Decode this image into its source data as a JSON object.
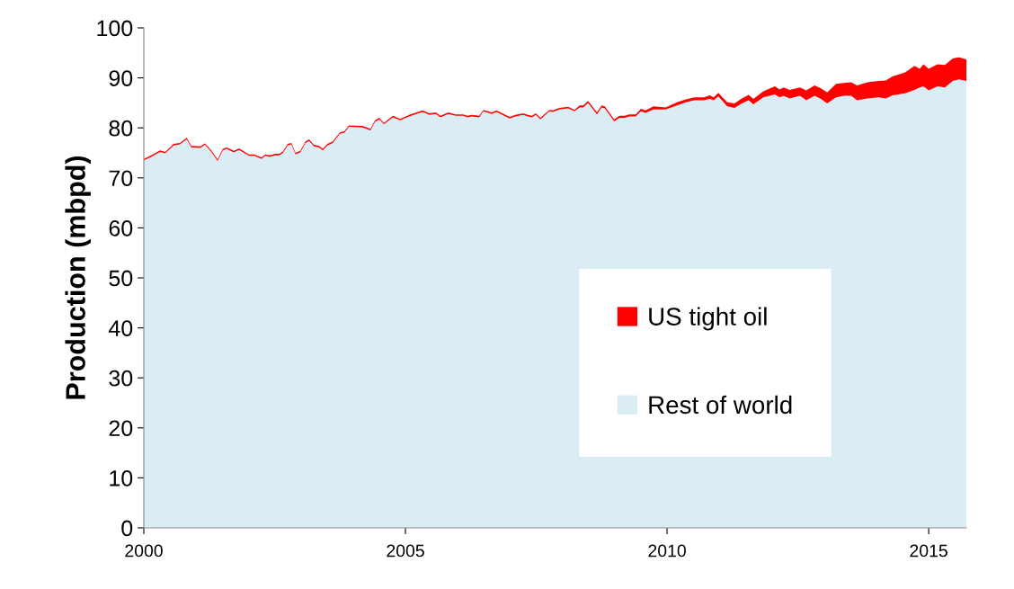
{
  "chart_data": {
    "type": "area",
    "stacked": true,
    "ylabel": "Production (mbpd)",
    "x": [
      2000.0,
      2000.14,
      2000.31,
      2000.41,
      2000.57,
      2000.69,
      2000.82,
      2000.91,
      2001.08,
      2001.17,
      2001.29,
      2001.41,
      2001.51,
      2001.58,
      2001.72,
      2001.82,
      2002.01,
      2002.11,
      2002.25,
      2002.32,
      2002.41,
      2002.51,
      2002.59,
      2002.66,
      2002.75,
      2002.82,
      2002.9,
      2002.99,
      2003.09,
      2003.16,
      2003.25,
      2003.35,
      2003.42,
      2003.51,
      2003.61,
      2003.75,
      2003.83,
      2003.92,
      2004.18,
      2004.33,
      2004.42,
      2004.5,
      2004.59,
      2004.76,
      2004.9,
      2005.07,
      2005.33,
      2005.46,
      2005.58,
      2005.67,
      2005.82,
      2005.96,
      2006.1,
      2006.19,
      2006.27,
      2006.41,
      2006.49,
      2006.65,
      2006.74,
      2006.99,
      2007.1,
      2007.25,
      2007.34,
      2007.42,
      2007.49,
      2007.58,
      2007.75,
      2007.82,
      2007.94,
      2008.11,
      2008.23,
      2008.33,
      2008.4,
      2008.49,
      2008.66,
      2008.75,
      2008.81,
      2008.99,
      2009.09,
      2009.19,
      2009.28,
      2009.4,
      2009.5,
      2009.59,
      2009.74,
      2009.97,
      2010.19,
      2010.36,
      2010.52,
      2010.7,
      2010.82,
      2010.89,
      2010.98,
      2011.15,
      2011.29,
      2011.43,
      2011.56,
      2011.65,
      2011.84,
      2012.06,
      2012.15,
      2012.23,
      2012.34,
      2012.54,
      2012.66,
      2012.82,
      2012.94,
      2013.06,
      2013.23,
      2013.38,
      2013.52,
      2013.63,
      2013.83,
      2014.04,
      2014.18,
      2014.31,
      2014.55,
      2014.73,
      2014.83,
      2014.9,
      2015.0,
      2015.17,
      2015.31,
      2015.46,
      2015.58,
      2015.72
    ],
    "series": [
      {
        "name": "Rest of world",
        "color": "#daedf4",
        "values": [
          73.5,
          74.2,
          75.2,
          74.9,
          76.5,
          76.7,
          77.7,
          76.1,
          76.0,
          76.6,
          75.2,
          73.4,
          75.5,
          75.8,
          75.1,
          75.6,
          74.4,
          74.4,
          73.8,
          74.4,
          74.2,
          74.5,
          74.5,
          75.0,
          76.5,
          76.7,
          74.7,
          75.1,
          77.0,
          77.4,
          76.3,
          76.1,
          75.5,
          76.5,
          77.0,
          78.8,
          79.0,
          80.2,
          80.1,
          79.5,
          81.2,
          81.7,
          80.7,
          82.1,
          81.5,
          82.3,
          83.2,
          82.6,
          82.8,
          82.1,
          82.8,
          82.4,
          82.4,
          82.1,
          82.3,
          82.1,
          83.3,
          82.8,
          83.2,
          81.9,
          82.3,
          82.6,
          82.3,
          82.1,
          82.6,
          81.7,
          83.3,
          83.2,
          83.7,
          83.9,
          83.3,
          84.1,
          84.1,
          85.0,
          82.7,
          84.1,
          83.9,
          81.3,
          82.0,
          82.0,
          82.3,
          82.3,
          83.3,
          83.0,
          83.7,
          83.7,
          84.5,
          85.1,
          85.5,
          85.5,
          85.8,
          85.5,
          86.3,
          84.3,
          84.0,
          84.9,
          85.5,
          84.7,
          86.1,
          86.7,
          86.1,
          86.4,
          85.9,
          86.4,
          85.5,
          86.4,
          85.8,
          84.9,
          86.1,
          86.4,
          86.4,
          85.5,
          85.9,
          86.1,
          85.9,
          86.5,
          86.9,
          87.6,
          88.1,
          88.3,
          87.5,
          88.3,
          88.1,
          89.4,
          89.7,
          89.4
        ]
      },
      {
        "name": "US tight oil",
        "color": "#ff0000",
        "values": [
          0.3,
          0.3,
          0.3,
          0.3,
          0.3,
          0.3,
          0.3,
          0.3,
          0.3,
          0.3,
          0.3,
          0.3,
          0.3,
          0.3,
          0.3,
          0.3,
          0.3,
          0.3,
          0.3,
          0.3,
          0.3,
          0.3,
          0.3,
          0.3,
          0.3,
          0.3,
          0.3,
          0.3,
          0.3,
          0.3,
          0.3,
          0.3,
          0.3,
          0.3,
          0.3,
          0.3,
          0.3,
          0.3,
          0.3,
          0.3,
          0.3,
          0.3,
          0.3,
          0.3,
          0.3,
          0.3,
          0.3,
          0.3,
          0.3,
          0.3,
          0.3,
          0.3,
          0.3,
          0.3,
          0.3,
          0.3,
          0.3,
          0.3,
          0.3,
          0.3,
          0.3,
          0.3,
          0.3,
          0.3,
          0.3,
          0.3,
          0.3,
          0.3,
          0.3,
          0.3,
          0.3,
          0.4,
          0.4,
          0.4,
          0.4,
          0.4,
          0.4,
          0.4,
          0.4,
          0.4,
          0.4,
          0.4,
          0.5,
          0.5,
          0.6,
          0.4,
          0.6,
          0.6,
          0.6,
          0.6,
          0.7,
          0.6,
          0.7,
          0.8,
          0.9,
          1.0,
          1.1,
          1.1,
          1.2,
          1.6,
          1.6,
          1.7,
          1.7,
          1.7,
          2.0,
          2.1,
          2.1,
          2.2,
          2.7,
          2.6,
          2.7,
          3.0,
          3.2,
          3.3,
          3.6,
          3.8,
          4.2,
          4.8,
          3.7,
          4.4,
          4.3,
          4.4,
          4.5,
          4.5,
          4.4,
          4.3
        ]
      }
    ],
    "xlim": [
      2000,
      2015.72
    ],
    "xticks": [
      2000,
      2005,
      2010,
      2015
    ],
    "ylim": [
      0,
      100
    ],
    "yticks": [
      0,
      10,
      20,
      30,
      40,
      50,
      60,
      70,
      80,
      90,
      100
    ],
    "grid": false,
    "legend": "right"
  }
}
